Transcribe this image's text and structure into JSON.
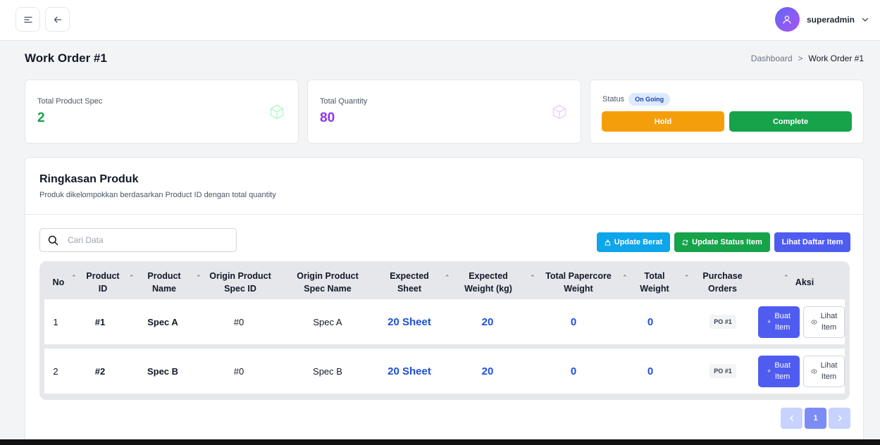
{
  "header": {
    "menu_icon": "menu-icon",
    "back_icon": "arrow-left-icon",
    "user": {
      "name": "superadmin",
      "avatar_icon": "user-icon",
      "dropdown_icon": "chevron-down-icon"
    }
  },
  "page": {
    "title": "Work Order #1",
    "breadcrumb": {
      "parent": "Dashboard",
      "separator": ">",
      "current": "Work Order #1"
    }
  },
  "stats": {
    "total_spec": {
      "label": "Total Product Spec",
      "value": "2",
      "color": "#16a34a",
      "icon": "box-icon"
    },
    "total_qty": {
      "label": "Total Quantity",
      "value": "80",
      "color": "#9333ea",
      "icon": "box-icon"
    }
  },
  "status": {
    "label": "Status",
    "value": "On Going",
    "hold_label": "Hold",
    "complete_label": "Complete",
    "hold_color": "#f59e0b",
    "complete_color": "#16a34a"
  },
  "summary": {
    "title": "Ringkasan Produk",
    "subtitle": "Produk dikelompokkan berdasarkan Product ID dengan total quantity",
    "search_placeholder": "Cari Data",
    "buttons": {
      "update_weight": "Update Berat",
      "update_status": "Update Status Item",
      "view_items": "Lihat Daftar Item"
    },
    "columns": [
      {
        "line1": "No",
        "line2": ""
      },
      {
        "line1": "Product",
        "line2": "ID"
      },
      {
        "line1": "Product",
        "line2": "Name"
      },
      {
        "line1": "Origin Product",
        "line2": "Spec ID"
      },
      {
        "line1": "Origin Product",
        "line2": "Spec Name"
      },
      {
        "line1": "Expected",
        "line2": "Sheet"
      },
      {
        "line1": "Expected",
        "line2": "Weight (kg)"
      },
      {
        "line1": "Total Papercore",
        "line2": "Weight"
      },
      {
        "line1": "Total",
        "line2": "Weight"
      },
      {
        "line1": "Purchase",
        "line2": "Orders"
      },
      {
        "line1": "Aksi",
        "line2": ""
      }
    ],
    "rows": [
      {
        "no": "1",
        "product_id": "#1",
        "product_name": "Spec A",
        "origin_spec_id": "#0",
        "origin_spec_name": "Spec A",
        "expected_sheet": "20 Sheet",
        "expected_weight": "20",
        "papercore_weight": "0",
        "total_weight": "0",
        "po": "PO #1",
        "create_line1": "Buat",
        "create_line2": "Item",
        "view_line1": "Lihat",
        "view_line2": "Item"
      },
      {
        "no": "2",
        "product_id": "#2",
        "product_name": "Spec B",
        "origin_spec_id": "#0",
        "origin_spec_name": "Spec B",
        "expected_sheet": "20 Sheet",
        "expected_weight": "20",
        "papercore_weight": "0",
        "total_weight": "0",
        "po": "PO #1",
        "create_line1": "Buat",
        "create_line2": "Item",
        "view_line1": "Lihat",
        "view_line2": "Item"
      }
    ],
    "pagination": {
      "prev_icon": "chevron-left-icon",
      "current": "1",
      "next_icon": "chevron-right-icon"
    }
  }
}
